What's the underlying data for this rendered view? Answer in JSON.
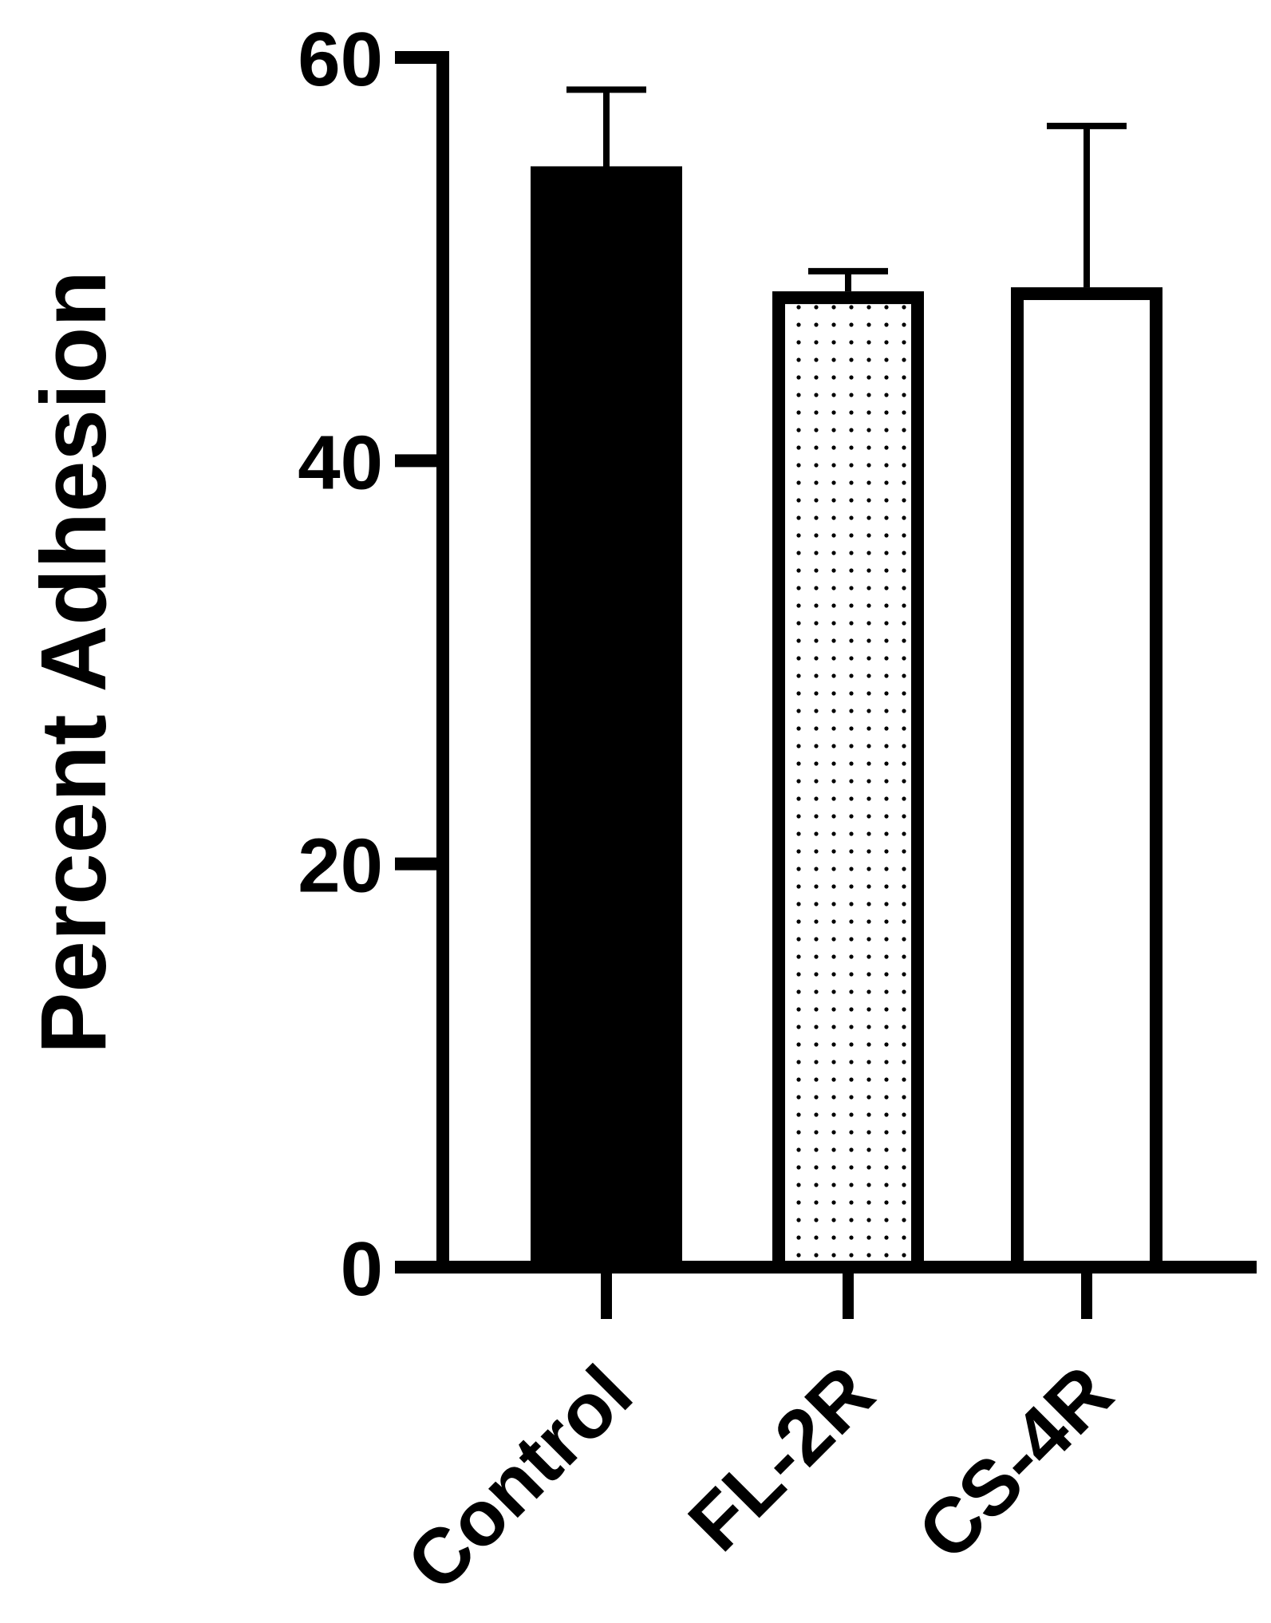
{
  "chart_data": {
    "type": "bar",
    "categories": [
      "Control",
      "FL-2R",
      "CS-4R"
    ],
    "values": [
      54.6,
      48.4,
      48.6
    ],
    "errors": [
      3.8,
      1.0,
      8.0
    ],
    "ylabel": "Percent Adhesion",
    "xlabel": "",
    "ylim": [
      0,
      60
    ],
    "yticks": [
      0,
      20,
      40,
      60
    ],
    "grid": false,
    "legend": "none",
    "bar_styles": [
      "solid-black",
      "dotted",
      "hollow-white"
    ],
    "colors": {
      "ink": "#000000",
      "background": "#ffffff"
    }
  }
}
